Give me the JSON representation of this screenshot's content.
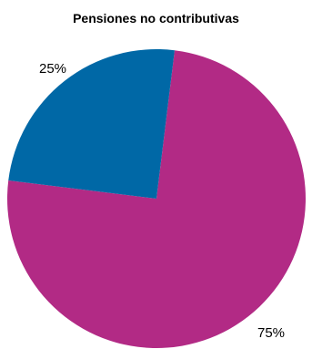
{
  "chart_data": {
    "type": "pie",
    "title": "Pensiones no contributivas",
    "start_angle_deg": 7,
    "direction": "clockwise",
    "slices": [
      {
        "value": 75,
        "label": "75%",
        "color": "#b22a85"
      },
      {
        "value": 25,
        "label": "25%",
        "color": "#0068a6"
      }
    ]
  }
}
